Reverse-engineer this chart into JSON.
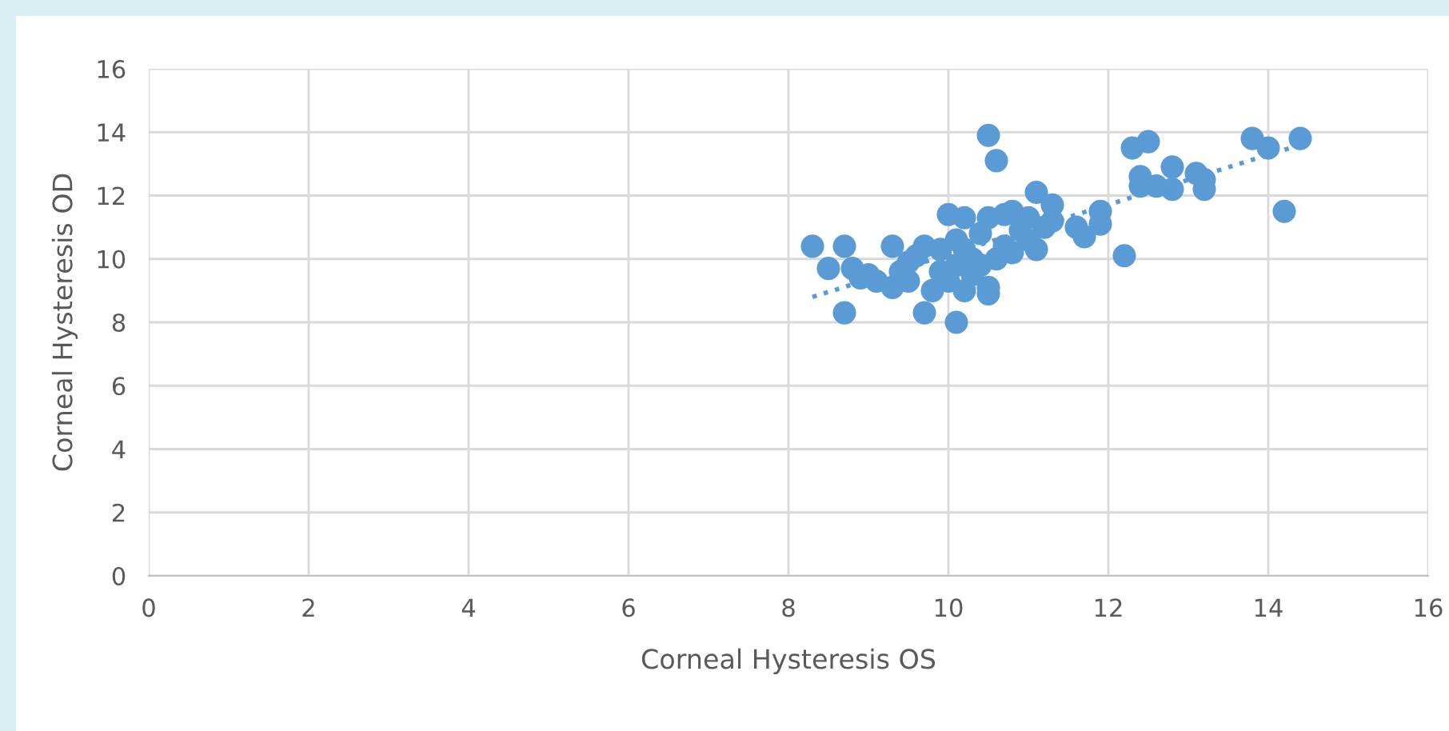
{
  "chart_data": {
    "type": "scatter",
    "xlabel": "Corneal Hysteresis OS",
    "ylabel": "Corneal Hysteresis OD",
    "xlim": [
      0,
      16
    ],
    "ylim": [
      0,
      16
    ],
    "xticks": [
      0,
      2,
      4,
      6,
      8,
      10,
      12,
      14,
      16
    ],
    "yticks": [
      0,
      2,
      4,
      6,
      8,
      10,
      12,
      14,
      16
    ],
    "grid": true,
    "marker": "circle",
    "series": [
      {
        "color": "#5b9bd5",
        "x": [
          8.3,
          8.5,
          8.7,
          8.7,
          8.8,
          8.9,
          9.0,
          9.1,
          9.3,
          9.3,
          9.4,
          9.5,
          9.5,
          9.6,
          9.7,
          9.7,
          9.8,
          9.9,
          9.9,
          10.0,
          10.0,
          10.1,
          10.1,
          10.1,
          10.2,
          10.2,
          10.2,
          10.3,
          10.3,
          10.4,
          10.4,
          10.5,
          10.5,
          10.5,
          10.5,
          10.6,
          10.6,
          10.7,
          10.7,
          10.8,
          10.8,
          10.9,
          11.0,
          11.0,
          11.1,
          11.1,
          11.2,
          11.3,
          11.3,
          11.6,
          11.7,
          11.9,
          11.9,
          12.2,
          12.3,
          12.4,
          12.4,
          12.5,
          12.6,
          12.8,
          12.8,
          13.1,
          13.2,
          13.2,
          13.8,
          14.0,
          14.2,
          14.4
        ],
        "values": [
          10.4,
          9.7,
          10.4,
          8.3,
          9.7,
          9.4,
          9.5,
          9.3,
          9.1,
          10.4,
          9.6,
          9.9,
          9.3,
          10.1,
          10.4,
          8.3,
          9.0,
          10.3,
          9.6,
          11.4,
          9.3,
          10.6,
          9.8,
          8.0,
          11.3,
          10.3,
          9.0,
          9.5,
          10.0,
          10.8,
          9.8,
          13.9,
          11.3,
          9.1,
          8.9,
          13.1,
          10.0,
          11.4,
          10.4,
          11.5,
          10.2,
          10.9,
          10.6,
          11.3,
          12.1,
          10.3,
          11.0,
          11.7,
          11.2,
          11.0,
          10.7,
          11.5,
          11.1,
          10.1,
          13.5,
          12.6,
          12.3,
          13.7,
          12.3,
          12.9,
          12.2,
          12.7,
          12.5,
          12.2,
          13.8,
          13.5,
          11.5,
          13.8
        ]
      },
      {
        "type": "line",
        "color": "#5b9bd5",
        "line_style": "dotted",
        "marker": "none",
        "x": [
          8.3,
          14.4
        ],
        "values": [
          8.8,
          13.6
        ]
      }
    ]
  }
}
